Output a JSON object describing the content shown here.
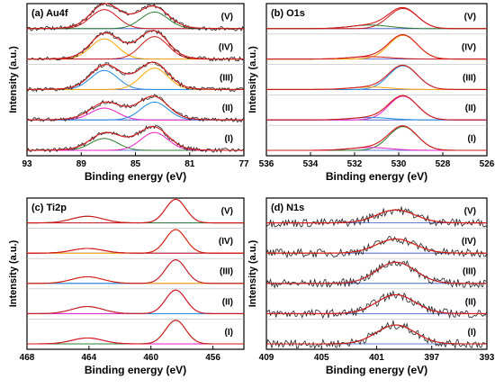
{
  "chart_data": [
    {
      "type": "line",
      "label": "(a) Au4f",
      "xlabel": "Binding energy (eV)",
      "ylabel": "Intensity (a.u.)",
      "xlim": [
        93,
        77
      ],
      "xticks": [
        93,
        89,
        85,
        81,
        77
      ],
      "samples": [
        "(I)",
        "(II)",
        "(III)",
        "(IV)",
        "(V)"
      ],
      "peaks": [
        87.3,
        83.6
      ],
      "widths": [
        1.0,
        1.0
      ],
      "heights": [
        [
          0.5,
          0.75
        ],
        [
          0.5,
          0.75
        ],
        [
          0.8,
          0.9
        ],
        [
          0.85,
          0.95
        ],
        [
          0.8,
          0.7
        ]
      ],
      "series_colors": [
        "#2e7d32",
        "#e91ec8",
        "#1e8ce0",
        "#ffa500",
        "#d01818"
      ],
      "noise": 0.09,
      "broad": 0.35
    },
    {
      "type": "line",
      "label": "(b) O1s",
      "xlabel": "Binding energy (eV)",
      "ylabel": "Intensity (a.u.)",
      "xlim": [
        536,
        526
      ],
      "xticks": [
        536,
        534,
        532,
        530,
        528,
        526
      ],
      "samples": [
        "(I)",
        "(II)",
        "(III)",
        "(IV)",
        "(V)"
      ],
      "peaks": [
        529.8,
        531.3
      ],
      "widths": [
        0.65,
        0.9
      ],
      "heights": [
        [
          1.0,
          0.12
        ],
        [
          1.0,
          0.1
        ],
        [
          1.0,
          0.1
        ],
        [
          1.0,
          0.1
        ],
        [
          0.85,
          0.15
        ]
      ],
      "series_colors": [
        "#2e7d32",
        "#e91ec8",
        "#1e8ce0",
        "#ffa500",
        "#d01818"
      ],
      "noise": 0.0,
      "broad": 0.0
    },
    {
      "type": "line",
      "label": "(c) Ti2p",
      "xlabel": "Binding energy (eV)",
      "ylabel": "Intensity (a.u.)",
      "xlim": [
        468,
        454
      ],
      "xticks": [
        468,
        464,
        460,
        456
      ],
      "samples": [
        "(I)",
        "(II)",
        "(III)",
        "(IV)",
        "(V)"
      ],
      "peaks": [
        458.4,
        464.1
      ],
      "widths": [
        0.65,
        1.0
      ],
      "heights": [
        [
          1.0,
          0.25
        ],
        [
          1.0,
          0.3
        ],
        [
          1.0,
          0.28
        ],
        [
          1.0,
          0.2
        ],
        [
          1.0,
          0.28
        ]
      ],
      "series_colors": [
        "#2e7d32",
        "#e91ec8",
        "#1e8ce0",
        "#ffa500",
        "#d01818"
      ],
      "noise": 0.0,
      "broad": 0.0
    },
    {
      "type": "line",
      "label": "(d) N1s",
      "xlabel": "Binding energy (eV)",
      "ylabel": "Intensity (a.u.)",
      "xlim": [
        409,
        393
      ],
      "xticks": [
        409,
        405,
        401,
        397,
        393
      ],
      "samples": [
        "(I)",
        "(II)",
        "(III)",
        "(IV)",
        "(V)"
      ],
      "peaks": [
        399.6
      ],
      "widths": [
        1.4
      ],
      "heights": [
        [
          0.8
        ],
        [
          0.8
        ],
        [
          0.9
        ],
        [
          0.6
        ],
        [
          0.55
        ]
      ],
      "series_colors": [
        "#2e7d32",
        "#e91ec8",
        "#1e8ce0",
        "#ffa500",
        "#d01818"
      ],
      "noise": 0.18,
      "broad": 0.0
    }
  ]
}
